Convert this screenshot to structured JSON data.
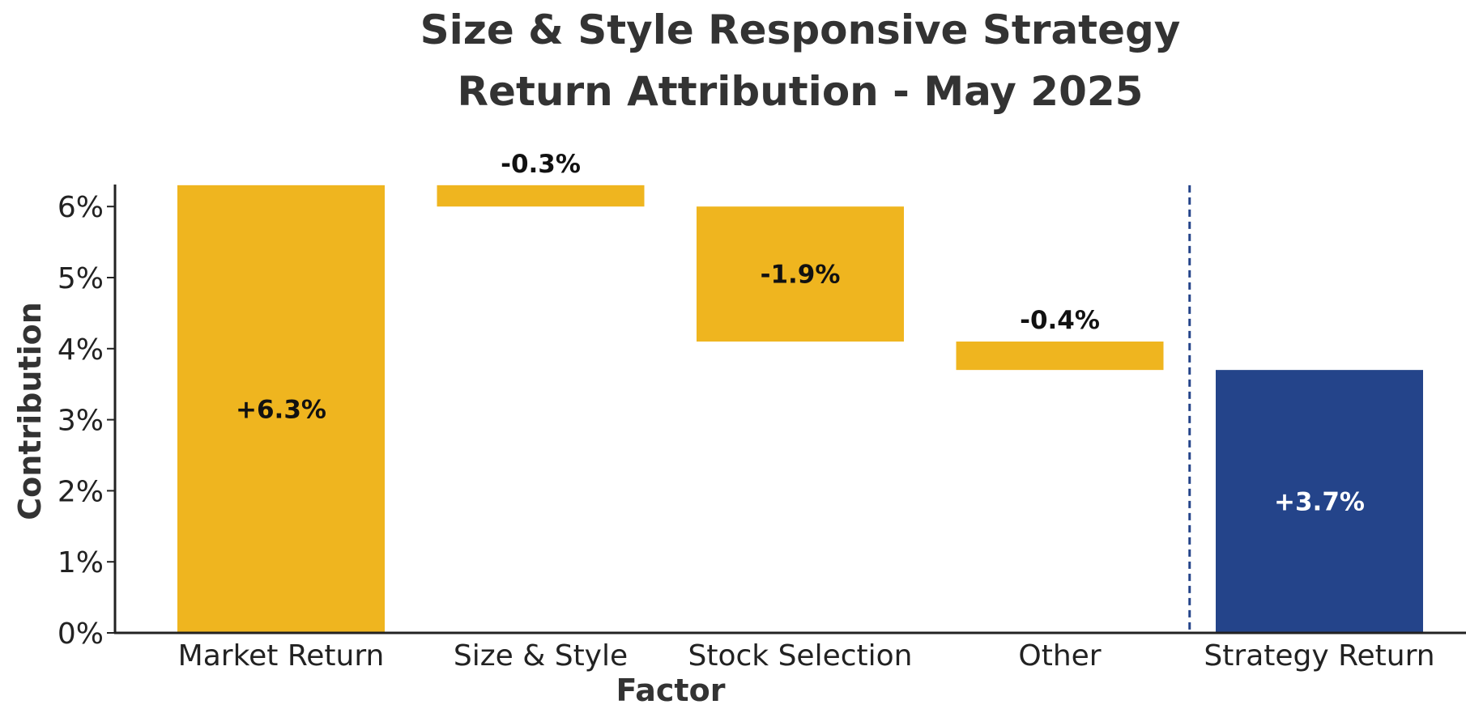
{
  "chart_data": {
    "type": "bar",
    "title_lines": [
      "Size & Style Responsive Strategy",
      "Return Attribution - May 2025"
    ],
    "xlabel": "Factor",
    "ylabel": "Contribution",
    "categories": [
      "Market Return",
      "Size & Style",
      "Stock Selection",
      "Other",
      "Strategy Return"
    ],
    "values": [
      6.3,
      -0.3,
      -1.9,
      -0.4,
      3.7
    ],
    "value_labels": [
      "+6.3%",
      "-0.3%",
      "-1.9%",
      "-0.4%",
      "+3.7%"
    ],
    "total_index": 4,
    "ylim": [
      0,
      6.3
    ],
    "yticks": [
      0,
      1,
      2,
      3,
      4,
      5,
      6
    ],
    "ytick_labels": [
      "0%",
      "1%",
      "2%",
      "3%",
      "4%",
      "5%",
      "6%"
    ],
    "grid": false,
    "separator_before_total": true,
    "colors": {
      "factor": "#EFB51F",
      "total": "#24448A",
      "separator": "#24448A",
      "label_dark": "#111111",
      "label_light": "#ffffff"
    }
  }
}
